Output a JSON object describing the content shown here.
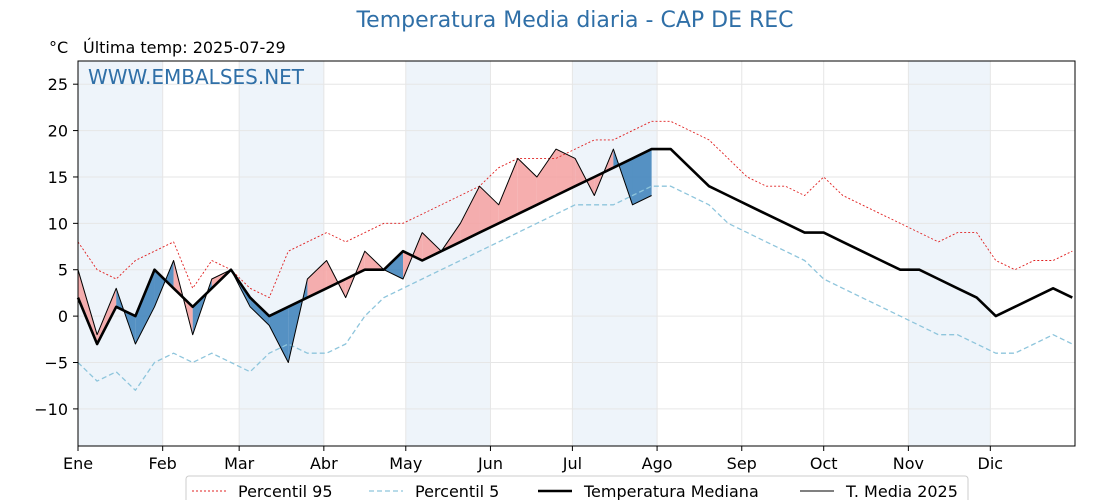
{
  "header": {
    "title": "Temperatura Media diaria - CAP DE REC",
    "unit": "°C",
    "last_temp": "Última temp: 2025-07-29"
  },
  "watermark": "WWW.EMBALSES.NET",
  "colors": {
    "title": "#2f6fa7",
    "p95": "#e02020",
    "p5": "#8ec5dc",
    "median": "#000000",
    "current": "#000000",
    "above_fill": "#f4a0a0",
    "below_fill": "#3a7fb8",
    "band": "#eef4fa"
  },
  "chart_data": {
    "type": "line",
    "title": "Temperatura Media diaria - CAP DE REC",
    "ylim": [
      -14,
      27.5
    ],
    "yticks": [
      -10,
      -5,
      0,
      5,
      10,
      15,
      20,
      25
    ],
    "ytick_labels": [
      "−10",
      "−5",
      "0",
      "5",
      "10",
      "15",
      "20",
      "25"
    ],
    "x_tick_labels": [
      "Ene",
      "Feb",
      "Mar",
      "Abr",
      "May",
      "Jun",
      "Jul",
      "Ago",
      "Sep",
      "Oct",
      "Nov",
      "Dic"
    ],
    "x_tick_days": [
      1,
      32,
      60,
      91,
      121,
      152,
      182,
      213,
      244,
      274,
      305,
      335
    ],
    "xlim": [
      1,
      366
    ],
    "grid": true,
    "legend_position": "bottom",
    "series": [
      {
        "name": "Percentil 95",
        "style": "dotted-red",
        "x": [
          1,
          8,
          15,
          22,
          29,
          36,
          43,
          50,
          57,
          64,
          71,
          78,
          85,
          92,
          99,
          106,
          113,
          120,
          127,
          134,
          141,
          148,
          155,
          162,
          169,
          176,
          183,
          190,
          197,
          204,
          211,
          218,
          225,
          232,
          239,
          246,
          253,
          260,
          267,
          274,
          281,
          288,
          295,
          302,
          309,
          316,
          323,
          330,
          337,
          344,
          351,
          358,
          365
        ],
        "values": [
          8,
          5,
          4,
          6,
          7,
          8,
          3,
          6,
          5,
          3,
          2,
          7,
          8,
          9,
          8,
          9,
          10,
          10,
          11,
          12,
          13,
          14,
          16,
          17,
          17,
          17,
          18,
          19,
          19,
          20,
          21,
          21,
          20,
          19,
          17,
          15,
          14,
          14,
          13,
          15,
          13,
          12,
          11,
          10,
          9,
          8,
          9,
          9,
          6,
          5,
          6,
          6,
          7
        ]
      },
      {
        "name": "Percentil 5",
        "style": "dashed-lightblue",
        "x": [
          1,
          8,
          15,
          22,
          29,
          36,
          43,
          50,
          57,
          64,
          71,
          78,
          85,
          92,
          99,
          106,
          113,
          120,
          127,
          134,
          141,
          148,
          155,
          162,
          169,
          176,
          183,
          190,
          197,
          204,
          211,
          218,
          225,
          232,
          239,
          246,
          253,
          260,
          267,
          274,
          281,
          288,
          295,
          302,
          309,
          316,
          323,
          330,
          337,
          344,
          351,
          358,
          365
        ],
        "values": [
          -5,
          -7,
          -6,
          -8,
          -5,
          -4,
          -5,
          -4,
          -5,
          -6,
          -4,
          -3,
          -4,
          -4,
          -3,
          0,
          2,
          3,
          4,
          5,
          6,
          7,
          8,
          9,
          10,
          11,
          12,
          12,
          12,
          13,
          14,
          14,
          13,
          12,
          10,
          9,
          8,
          7,
          6,
          4,
          3,
          2,
          1,
          0,
          -1,
          -2,
          -2,
          -3,
          -4,
          -4,
          -3,
          -2,
          -3
        ]
      },
      {
        "name": "Temperatura Mediana",
        "style": "thick-black",
        "x": [
          1,
          8,
          15,
          22,
          29,
          36,
          43,
          50,
          57,
          64,
          71,
          78,
          85,
          92,
          99,
          106,
          113,
          120,
          127,
          134,
          141,
          148,
          155,
          162,
          169,
          176,
          183,
          190,
          197,
          204,
          211,
          218,
          225,
          232,
          239,
          246,
          253,
          260,
          267,
          274,
          281,
          288,
          295,
          302,
          309,
          316,
          323,
          330,
          337,
          344,
          351,
          358,
          365
        ],
        "values": [
          2,
          -3,
          1,
          0,
          5,
          3,
          1,
          3,
          5,
          2,
          0,
          1,
          2,
          3,
          4,
          5,
          5,
          7,
          6,
          7,
          8,
          9,
          10,
          11,
          12,
          13,
          14,
          15,
          16,
          17,
          18,
          18,
          16,
          14,
          13,
          12,
          11,
          10,
          9,
          9,
          8,
          7,
          6,
          5,
          5,
          4,
          3,
          2,
          0,
          1,
          2,
          3,
          2
        ]
      },
      {
        "name": "T. Media 2025",
        "style": "thin-black",
        "x": [
          1,
          8,
          15,
          22,
          29,
          36,
          43,
          50,
          57,
          64,
          71,
          78,
          85,
          92,
          99,
          106,
          113,
          120,
          127,
          134,
          141,
          148,
          155,
          162,
          169,
          176,
          183,
          190,
          197,
          204,
          211
        ],
        "values": [
          5,
          -2,
          3,
          -3,
          1,
          6,
          -2,
          4,
          5,
          1,
          -1,
          -5,
          4,
          6,
          2,
          7,
          5,
          4,
          9,
          7,
          10,
          14,
          12,
          17,
          15,
          18,
          17,
          13,
          18,
          12,
          13
        ]
      }
    ],
    "legend": [
      "Percentil 95",
      "Percentil 5",
      "Temperatura Mediana",
      "T. Media 2025"
    ]
  }
}
